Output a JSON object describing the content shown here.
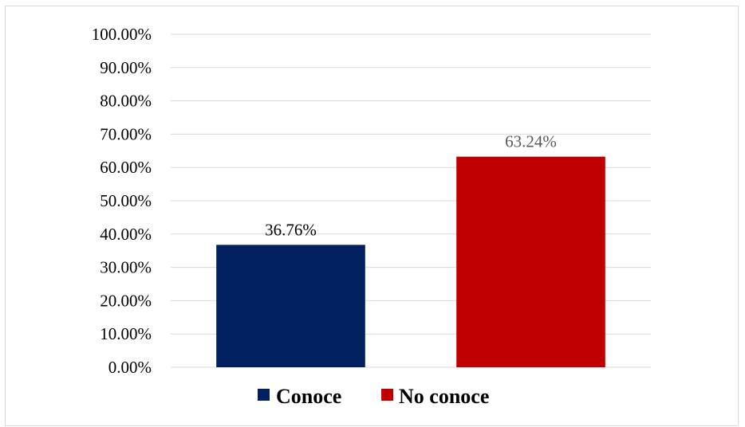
{
  "chart_data": {
    "type": "bar",
    "categories": [
      "Conoce",
      "No conoce"
    ],
    "values": [
      36.76,
      63.24
    ],
    "data_labels": [
      "36.76%",
      "63.24%"
    ],
    "colors": [
      "#002060",
      "#C00000"
    ],
    "data_label_colors": [
      "#000000",
      "#595959"
    ],
    "ylim": [
      0,
      100
    ],
    "y_ticks": [
      "0.00%",
      "10.00%",
      "20.00%",
      "30.00%",
      "40.00%",
      "50.00%",
      "60.00%",
      "70.00%",
      "80.00%",
      "90.00%",
      "100.00%"
    ],
    "grid": true,
    "gridline_color": "#d9d9d9",
    "legend_position": "bottom",
    "legend": [
      {
        "label": "Conoce",
        "color": "#002060"
      },
      {
        "label": "No conoce",
        "color": "#C00000"
      }
    ],
    "title": "",
    "xlabel": "",
    "ylabel": ""
  }
}
